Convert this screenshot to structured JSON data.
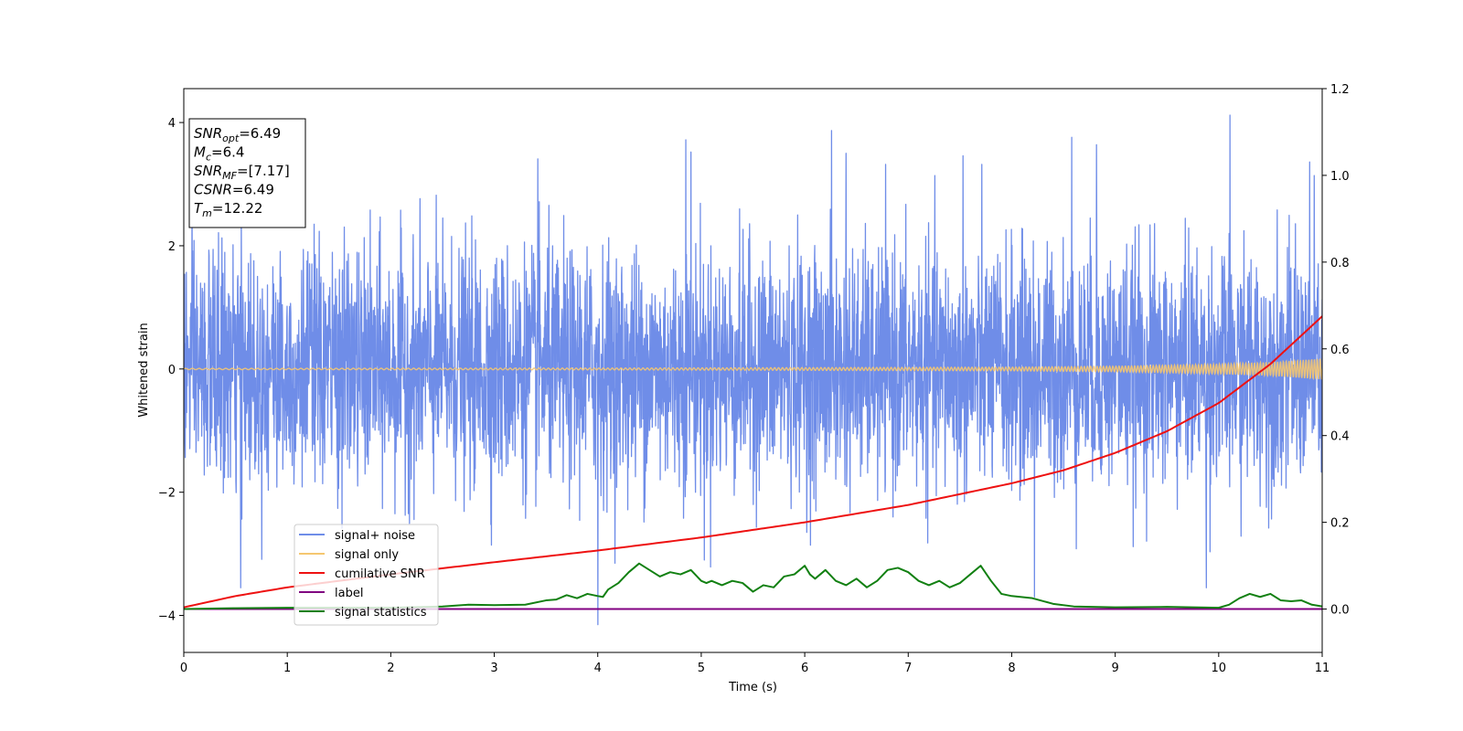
{
  "chart_data": {
    "type": "line",
    "xlabel": "Time (s)",
    "ylabel": "Whitened strain",
    "xlim": [
      0,
      11
    ],
    "ylim": [
      -4.6,
      4.55
    ],
    "ylim_right": [
      -0.1,
      1.2
    ],
    "x_ticks": [
      0,
      1,
      2,
      3,
      4,
      5,
      6,
      7,
      8,
      9,
      10,
      11
    ],
    "y_ticks": [
      -4,
      -2,
      0,
      2,
      4
    ],
    "y_ticks_right": [
      0.0,
      0.2,
      0.4,
      0.6,
      0.8,
      1.0,
      1.2
    ],
    "grid": false,
    "legend_position": "lower-left",
    "info_box": {
      "position": "top-left",
      "lines": [
        {
          "sym": "SNR",
          "sub": "opt",
          "value": "=6.49"
        },
        {
          "sym": "M",
          "sub": "c",
          "value": "=6.4"
        },
        {
          "sym": "SNR",
          "sub": "MF",
          "value": "=[7.17]"
        },
        {
          "sym": "CSNR",
          "sub": "",
          "value": "=6.49"
        },
        {
          "sym": "T",
          "sub": "m",
          "value": "=12.22"
        }
      ]
    },
    "series": [
      {
        "name": "signal+ noise",
        "axis": "left",
        "color": "#6f8de8",
        "description_stats": {
          "std": 0.95,
          "min": -4.15,
          "max": 4.12
        },
        "peaks": [
          [
            0.55,
            -3.55
          ],
          [
            1.26,
            2.35
          ],
          [
            3.42,
            3.41
          ],
          [
            4.0,
            -4.15
          ],
          [
            4.85,
            3.72
          ],
          [
            4.9,
            3.52
          ],
          [
            5.03,
            -3.1
          ],
          [
            6.26,
            3.87
          ],
          [
            6.4,
            3.5
          ],
          [
            7.53,
            3.46
          ],
          [
            8.22,
            -3.7
          ],
          [
            8.58,
            3.76
          ],
          [
            8.82,
            3.64
          ],
          [
            9.88,
            -3.55
          ],
          [
            10.11,
            4.12
          ],
          [
            10.88,
            3.36
          ]
        ]
      },
      {
        "name": "signal only",
        "axis": "left",
        "color": "#f5c770",
        "envelope": {
          "x": [
            0,
            4,
            8,
            9,
            10,
            10.5,
            11
          ],
          "amp": [
            0.01,
            0.015,
            0.03,
            0.045,
            0.08,
            0.11,
            0.17
          ]
        }
      },
      {
        "name": "cumilative SNR",
        "axis": "right",
        "color": "#ee1111",
        "x": [
          0,
          0.5,
          1,
          2,
          3,
          4,
          5,
          6,
          7,
          8,
          8.5,
          9,
          9.5,
          10,
          10.5,
          11
        ],
        "values": [
          0.004,
          0.03,
          0.05,
          0.08,
          0.108,
          0.135,
          0.165,
          0.2,
          0.24,
          0.29,
          0.32,
          0.36,
          0.41,
          0.475,
          0.565,
          0.675
        ]
      },
      {
        "name": "label",
        "axis": "right",
        "color": "#800080",
        "x": [
          0,
          11
        ],
        "values": [
          0.0,
          0.0
        ]
      },
      {
        "name": "signal statistics",
        "axis": "right",
        "color": "#128012",
        "x": [
          0,
          0.5,
          1,
          2,
          2.5,
          2.75,
          3,
          3.3,
          3.5,
          3.6,
          3.7,
          3.8,
          3.9,
          4.0,
          4.05,
          4.1,
          4.2,
          4.3,
          4.4,
          4.5,
          4.6,
          4.7,
          4.8,
          4.9,
          5.0,
          5.05,
          5.1,
          5.2,
          5.3,
          5.4,
          5.5,
          5.6,
          5.7,
          5.8,
          5.9,
          6.0,
          6.05,
          6.1,
          6.2,
          6.3,
          6.4,
          6.5,
          6.6,
          6.7,
          6.8,
          6.9,
          7.0,
          7.1,
          7.2,
          7.3,
          7.4,
          7.5,
          7.6,
          7.7,
          7.8,
          7.9,
          8.0,
          8.2,
          8.4,
          8.6,
          9.0,
          9.5,
          10.0,
          10.1,
          10.2,
          10.3,
          10.4,
          10.5,
          10.6,
          10.7,
          10.8,
          10.9,
          11.0
        ],
        "values": [
          0.0,
          0.002,
          0.003,
          0.003,
          0.006,
          0.01,
          0.009,
          0.01,
          0.02,
          0.022,
          0.032,
          0.025,
          0.035,
          0.03,
          0.028,
          0.045,
          0.06,
          0.085,
          0.105,
          0.09,
          0.075,
          0.085,
          0.08,
          0.09,
          0.065,
          0.06,
          0.065,
          0.055,
          0.065,
          0.06,
          0.04,
          0.055,
          0.05,
          0.075,
          0.08,
          0.1,
          0.08,
          0.07,
          0.09,
          0.065,
          0.055,
          0.07,
          0.05,
          0.065,
          0.09,
          0.095,
          0.085,
          0.065,
          0.055,
          0.065,
          0.05,
          0.06,
          0.08,
          0.1,
          0.065,
          0.035,
          0.03,
          0.025,
          0.012,
          0.006,
          0.004,
          0.005,
          0.003,
          0.01,
          0.025,
          0.035,
          0.028,
          0.035,
          0.02,
          0.018,
          0.02,
          0.01,
          0.006
        ]
      }
    ]
  }
}
